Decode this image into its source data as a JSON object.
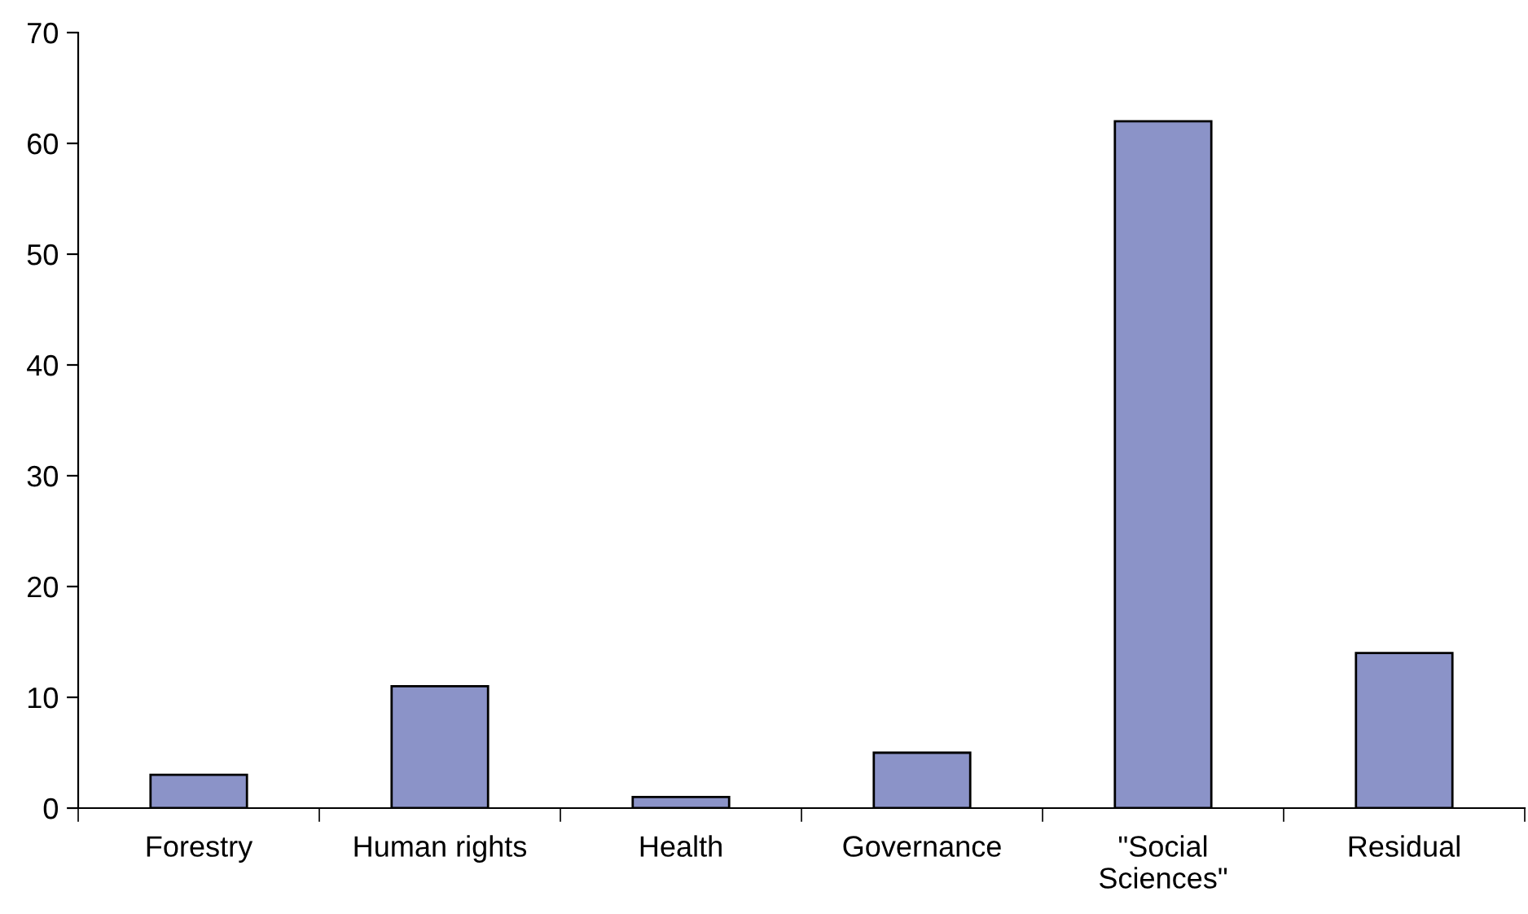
{
  "chart_data": {
    "type": "bar",
    "categories": [
      "Forestry",
      "Human rights",
      "Health",
      "Governance",
      "\"Social Sciences\"",
      "Residual"
    ],
    "values": [
      3,
      11,
      1,
      5,
      62,
      14
    ],
    "color": "#8b93c8",
    "ylim": [
      0,
      70
    ],
    "yticks": [
      0,
      10,
      20,
      30,
      40,
      50,
      60,
      70
    ],
    "grid": false,
    "legend": false
  }
}
